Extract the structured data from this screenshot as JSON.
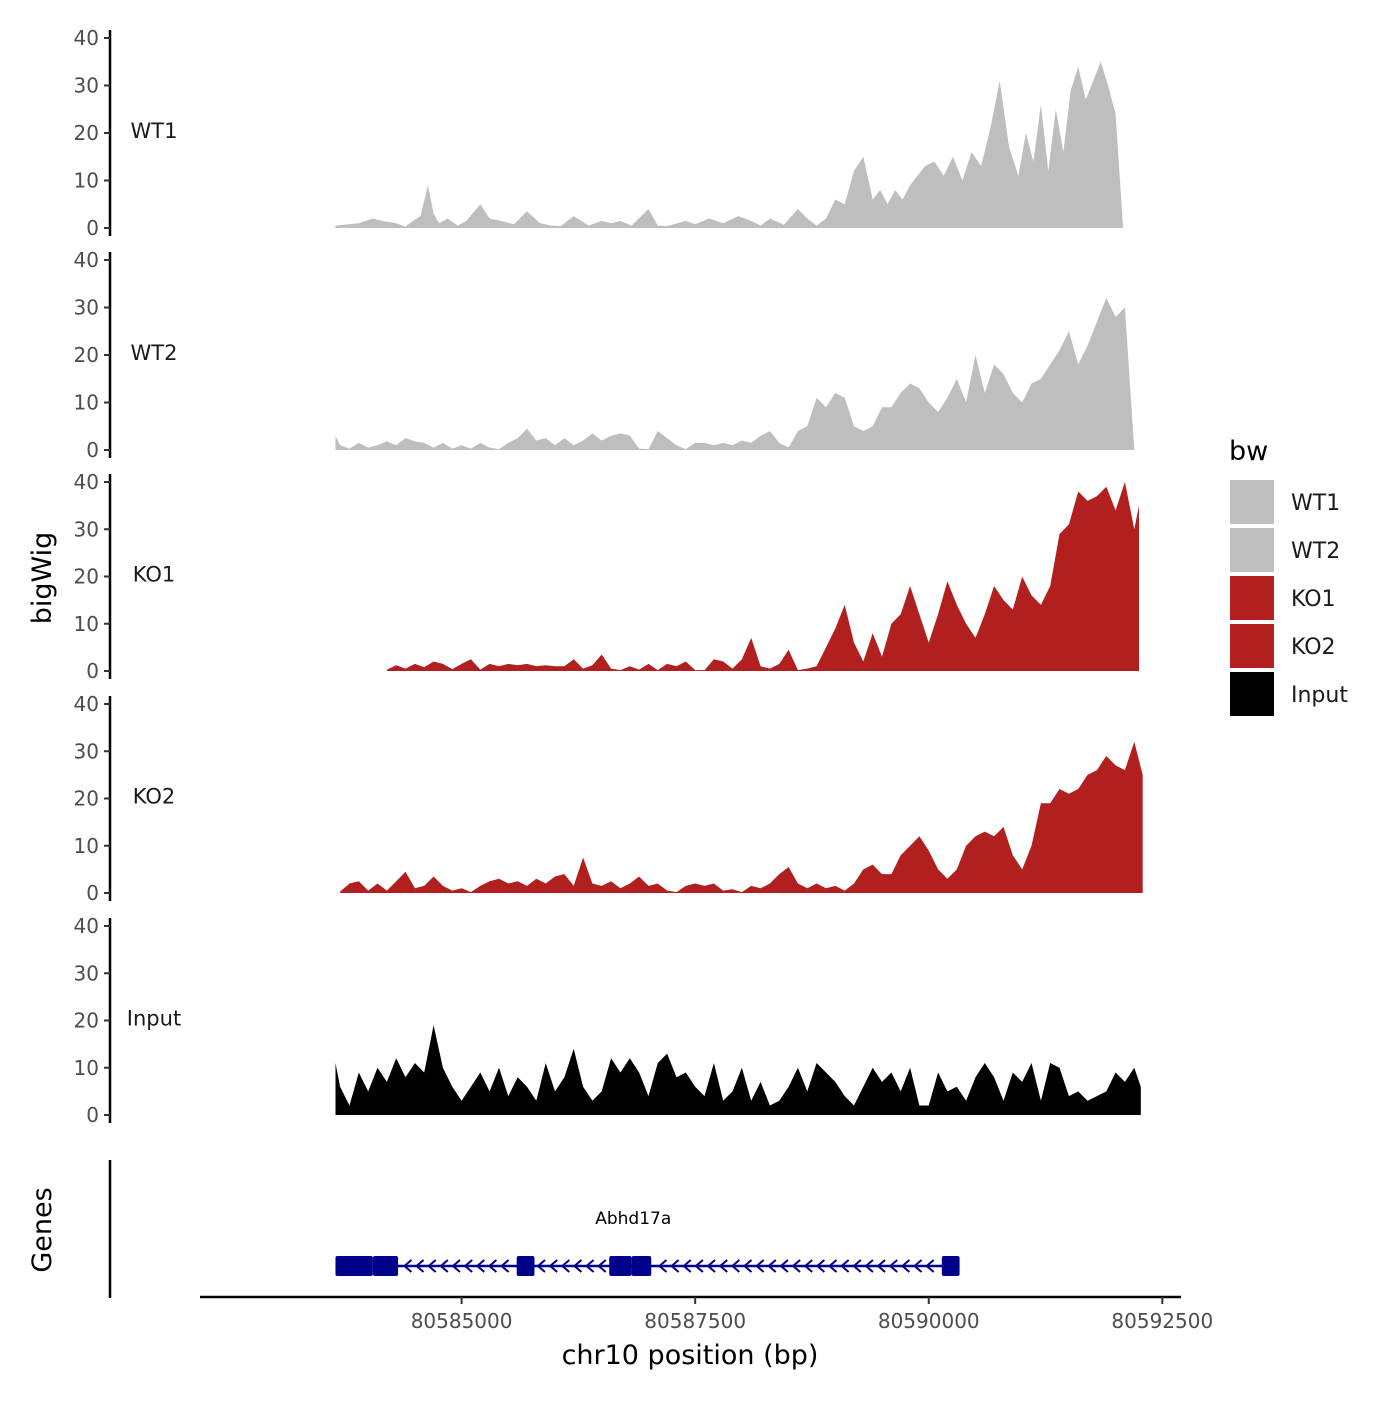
{
  "chart_data": {
    "type": "area",
    "ylabel": "bigWig",
    "gene_track_label": "Genes",
    "xlabel": "chr10 position (bp)",
    "xlim": [
      80582200,
      80592700
    ],
    "x_ticks": [
      80585000,
      80587500,
      80590000,
      80592500
    ],
    "x_tick_labels": [
      "80585000",
      "80587500",
      "80590000",
      "80592500"
    ],
    "ylim": [
      0,
      40
    ],
    "y_ticks": [
      0,
      10,
      20,
      30,
      40
    ],
    "y_tick_labels": [
      "0",
      "10",
      "20",
      "30",
      "40"
    ],
    "legend": {
      "title": "bw",
      "position": "right",
      "entries": [
        {
          "label": "WT1",
          "color": "#bebebe"
        },
        {
          "label": "WT2",
          "color": "#bebebe"
        },
        {
          "label": "KO1",
          "color": "#b21f1f"
        },
        {
          "label": "KO2",
          "color": "#b21f1f"
        },
        {
          "label": "Input",
          "color": "#000000"
        }
      ]
    },
    "series": [
      {
        "name": "WT1",
        "color": "#bebebe",
        "x": [
          80583650,
          80583900,
          80584050,
          80584150,
          80584300,
          80584400,
          80584480,
          80584560,
          80584640,
          80584700,
          80584760,
          80584850,
          80584960,
          80585050,
          80585200,
          80585300,
          80585420,
          80585560,
          80585700,
          80585840,
          80585960,
          80586060,
          80586200,
          80586360,
          80586500,
          80586600,
          80586700,
          80586820,
          80587000,
          80587100,
          80587200,
          80587400,
          80587500,
          80587650,
          80587800,
          80587960,
          80588100,
          80588200,
          80588300,
          80588450,
          80588600,
          80588700,
          80588800,
          80588900,
          80589000,
          80589100,
          80589200,
          80589300,
          80589400,
          80589480,
          80589560,
          80589640,
          80589720,
          80589800,
          80589880,
          80589960,
          80590060,
          80590160,
          80590260,
          80590360,
          80590460,
          80590560,
          80590660,
          80590760,
          80590860,
          80590960,
          80591040,
          80591120,
          80591200,
          80591280,
          80591360,
          80591440,
          80591520,
          80591600,
          80591680,
          80591760,
          80591840,
          80591920,
          80592000,
          80592080,
          80592160,
          80592230,
          80592290
        ],
        "values": [
          0.5,
          1,
          2,
          1.5,
          1,
          0.3,
          1.5,
          2.5,
          9,
          3,
          1,
          2,
          0.5,
          1.5,
          5,
          2,
          1.5,
          0.8,
          3.5,
          1,
          0.5,
          0.4,
          2.5,
          0.5,
          1.5,
          1,
          1.5,
          0.5,
          4,
          0.5,
          0.4,
          1.5,
          0.8,
          2,
          1,
          2.5,
          1.5,
          0.5,
          2,
          0.7,
          4,
          2,
          0.5,
          2,
          6,
          5,
          12,
          15,
          6,
          8,
          5,
          8,
          6,
          9,
          11,
          13,
          14,
          11,
          15,
          10,
          16,
          13,
          21,
          31,
          17,
          11,
          20,
          14,
          26,
          12,
          25,
          16,
          29,
          34,
          27,
          31,
          35,
          30,
          24,
          0,
          0,
          0,
          0
        ]
      },
      {
        "name": "WT2",
        "color": "#bebebe",
        "x": [
          80583650,
          80583700,
          80583800,
          80583900,
          80584000,
          80584100,
          80584200,
          80584300,
          80584400,
          80584500,
          80584600,
          80584700,
          80584800,
          80584900,
          80585000,
          80585100,
          80585200,
          80585300,
          80585400,
          80585500,
          80585600,
          80585700,
          80585800,
          80585900,
          80586000,
          80586100,
          80586200,
          80586300,
          80586400,
          80586500,
          80586600,
          80586700,
          80586800,
          80586900,
          80587000,
          80587100,
          80587200,
          80587300,
          80587400,
          80587500,
          80587600,
          80587700,
          80587800,
          80587900,
          80588000,
          80588100,
          80588200,
          80588300,
          80588400,
          80588500,
          80588600,
          80588700,
          80588800,
          80588900,
          80589000,
          80589100,
          80589200,
          80589300,
          80589400,
          80589500,
          80589600,
          80589700,
          80589800,
          80589900,
          80590000,
          80590100,
          80590200,
          80590300,
          80590400,
          80590500,
          80590600,
          80590700,
          80590800,
          80590900,
          80591000,
          80591100,
          80591200,
          80591300,
          80591400,
          80591500,
          80591600,
          80591700,
          80591800,
          80591900,
          80592000,
          80592100,
          80592200,
          80592270
        ],
        "values": [
          3,
          1,
          0.3,
          1.5,
          0.5,
          1,
          1.8,
          1,
          2.5,
          1.8,
          1.5,
          0.5,
          1.5,
          0.3,
          1,
          0.3,
          1.5,
          0.5,
          0.2,
          1.5,
          2.5,
          4.5,
          2,
          2.5,
          1,
          2.5,
          1,
          2,
          3.5,
          2,
          3,
          3.5,
          3,
          0.3,
          0.2,
          4,
          2.5,
          1,
          0.2,
          1.5,
          1.5,
          1,
          1.5,
          1,
          2,
          1.5,
          3,
          4,
          1.5,
          0.5,
          4,
          5,
          11,
          9,
          12,
          11,
          5,
          4,
          5,
          9,
          9,
          12,
          14,
          13,
          10,
          8,
          11,
          15,
          10,
          20,
          12,
          18,
          16,
          12,
          10,
          14,
          15,
          18,
          21,
          25,
          18,
          22,
          27,
          32,
          28,
          30,
          0,
          0
        ]
      },
      {
        "name": "KO1",
        "color": "#b21f1f",
        "x": [
          80584200,
          80584300,
          80584400,
          80584500,
          80584600,
          80584700,
          80584800,
          80584900,
          80585000,
          80585100,
          80585200,
          80585300,
          80585400,
          80585500,
          80585600,
          80585700,
          80585800,
          80585900,
          80586000,
          80586100,
          80586200,
          80586300,
          80586400,
          80586500,
          80586600,
          80586700,
          80586800,
          80586900,
          80587000,
          80587100,
          80587200,
          80587300,
          80587400,
          80587500,
          80587600,
          80587700,
          80587800,
          80587900,
          80588000,
          80588100,
          80588200,
          80588300,
          80588400,
          80588500,
          80588600,
          80588700,
          80588800,
          80588900,
          80589000,
          80589100,
          80589200,
          80589300,
          80589400,
          80589500,
          80589600,
          80589700,
          80589800,
          80589900,
          80590000,
          80590100,
          80590200,
          80590300,
          80590400,
          80590500,
          80590600,
          80590700,
          80590800,
          80590900,
          80591000,
          80591100,
          80591200,
          80591300,
          80591400,
          80591500,
          80591600,
          80591700,
          80591800,
          80591900,
          80592000,
          80592100,
          80592200,
          80592250
        ],
        "values": [
          0.3,
          1.2,
          0.5,
          1.5,
          0.8,
          2,
          1.5,
          0.4,
          1.5,
          2.5,
          0.3,
          1.5,
          1,
          1.5,
          1.2,
          1.5,
          1,
          1.2,
          1,
          1,
          2.5,
          0.5,
          1.2,
          3.5,
          0.5,
          0.2,
          1,
          0.3,
          1.5,
          0.2,
          1.5,
          1,
          2,
          0.2,
          0.2,
          2.5,
          2,
          0.5,
          2.5,
          7,
          1,
          0.5,
          1.5,
          4.5,
          0.2,
          0.5,
          1,
          5,
          9,
          14,
          6,
          2,
          8,
          3,
          10,
          12,
          18,
          12,
          6,
          12,
          19,
          14,
          10,
          7,
          12,
          18,
          15,
          13,
          20,
          16,
          14,
          18,
          29,
          31,
          38,
          36,
          37,
          39,
          34,
          40,
          30,
          35
        ]
      },
      {
        "name": "KO2",
        "color": "#b21f1f",
        "x": [
          80583700,
          80583800,
          80583900,
          80584000,
          80584100,
          80584200,
          80584300,
          80584400,
          80584500,
          80584600,
          80584700,
          80584800,
          80584900,
          80585000,
          80585100,
          80585200,
          80585300,
          80585400,
          80585500,
          80585600,
          80585700,
          80585800,
          80585900,
          80586000,
          80586100,
          80586200,
          80586300,
          80586400,
          80586500,
          80586600,
          80586700,
          80586800,
          80586900,
          80587000,
          80587100,
          80587200,
          80587300,
          80587400,
          80587500,
          80587600,
          80587700,
          80587800,
          80587900,
          80588000,
          80588100,
          80588200,
          80588300,
          80588400,
          80588500,
          80588600,
          80588700,
          80588800,
          80588900,
          80589000,
          80589100,
          80589200,
          80589300,
          80589400,
          80589500,
          80589600,
          80589700,
          80589800,
          80589900,
          80590000,
          80590100,
          80590200,
          80590300,
          80590400,
          80590500,
          80590600,
          80590700,
          80590800,
          80590900,
          80591000,
          80591100,
          80591200,
          80591300,
          80591400,
          80591500,
          80591600,
          80591700,
          80591800,
          80591900,
          80592000,
          80592100,
          80592200,
          80592290
        ],
        "values": [
          0.3,
          2,
          2.5,
          0.5,
          2,
          0.5,
          2.5,
          4.5,
          1,
          1.5,
          3.5,
          1.5,
          0.5,
          1,
          0.2,
          1.5,
          2.5,
          3,
          2,
          2.5,
          1.5,
          3,
          2,
          3.5,
          4,
          1.5,
          7.5,
          2,
          1.5,
          2.5,
          1,
          2,
          3.5,
          1.5,
          2,
          0.5,
          0.2,
          1.5,
          2,
          1.5,
          2,
          0.5,
          0.8,
          0.2,
          1.5,
          1,
          2,
          4,
          5.5,
          2,
          1,
          2,
          1,
          1.5,
          0.5,
          2,
          5,
          6,
          4,
          4,
          8,
          10,
          12,
          9,
          5,
          3,
          5,
          10,
          12,
          13,
          12,
          14,
          8,
          5,
          10,
          19,
          19,
          22,
          21,
          22,
          25,
          26,
          29,
          27,
          26,
          32,
          25
        ]
      },
      {
        "name": "Input",
        "color": "#000000",
        "x": [
          80583650,
          80583700,
          80583800,
          80583900,
          80584000,
          80584100,
          80584200,
          80584300,
          80584400,
          80584500,
          80584600,
          80584700,
          80584800,
          80584900,
          80585000,
          80585100,
          80585200,
          80585300,
          80585400,
          80585500,
          80585600,
          80585700,
          80585800,
          80585900,
          80586000,
          80586100,
          80586200,
          80586300,
          80586400,
          80586500,
          80586600,
          80586700,
          80586800,
          80586900,
          80587000,
          80587100,
          80587200,
          80587300,
          80587400,
          80587500,
          80587600,
          80587700,
          80587800,
          80587900,
          80588000,
          80588100,
          80588200,
          80588300,
          80588400,
          80588500,
          80588600,
          80588700,
          80588800,
          80588900,
          80589000,
          80589100,
          80589200,
          80589300,
          80589400,
          80589500,
          80589600,
          80589700,
          80589800,
          80589900,
          80590000,
          80590100,
          80590200,
          80590300,
          80590400,
          80590500,
          80590600,
          80590700,
          80590800,
          80590900,
          80591000,
          80591100,
          80591200,
          80591300,
          80591400,
          80591500,
          80591600,
          80591700,
          80591800,
          80591900,
          80592000,
          80592100,
          80592200,
          80592270
        ],
        "values": [
          11,
          6,
          2,
          9,
          5,
          10,
          7,
          12,
          8,
          11,
          9,
          19,
          10,
          6,
          3,
          6,
          9,
          5,
          10,
          4,
          8,
          6,
          3,
          11,
          5,
          8,
          14,
          6,
          3,
          5,
          12,
          9,
          12,
          9,
          4,
          11,
          13,
          8,
          9,
          6,
          4,
          11,
          3,
          5,
          10,
          3,
          7,
          2,
          3,
          6,
          10,
          5,
          11,
          9,
          7,
          4,
          2,
          6,
          10,
          7,
          9,
          5,
          10,
          2,
          2,
          9,
          5,
          6,
          3,
          8,
          11,
          8,
          3,
          9,
          7,
          11,
          3,
          11,
          10,
          4,
          5,
          3,
          4,
          5,
          9,
          7,
          10,
          6
        ]
      }
    ],
    "gene": {
      "name": "Abhd17a",
      "strand": "-",
      "start": 80583650,
      "end": 80590330,
      "exons": [
        [
          80583650,
          80584050
        ],
        [
          80584050,
          80584320
        ],
        [
          80585590,
          80585780
        ],
        [
          80586580,
          80586820
        ],
        [
          80586820,
          80587030
        ],
        [
          80590140,
          80590330
        ]
      ],
      "color": "#00008b"
    }
  }
}
